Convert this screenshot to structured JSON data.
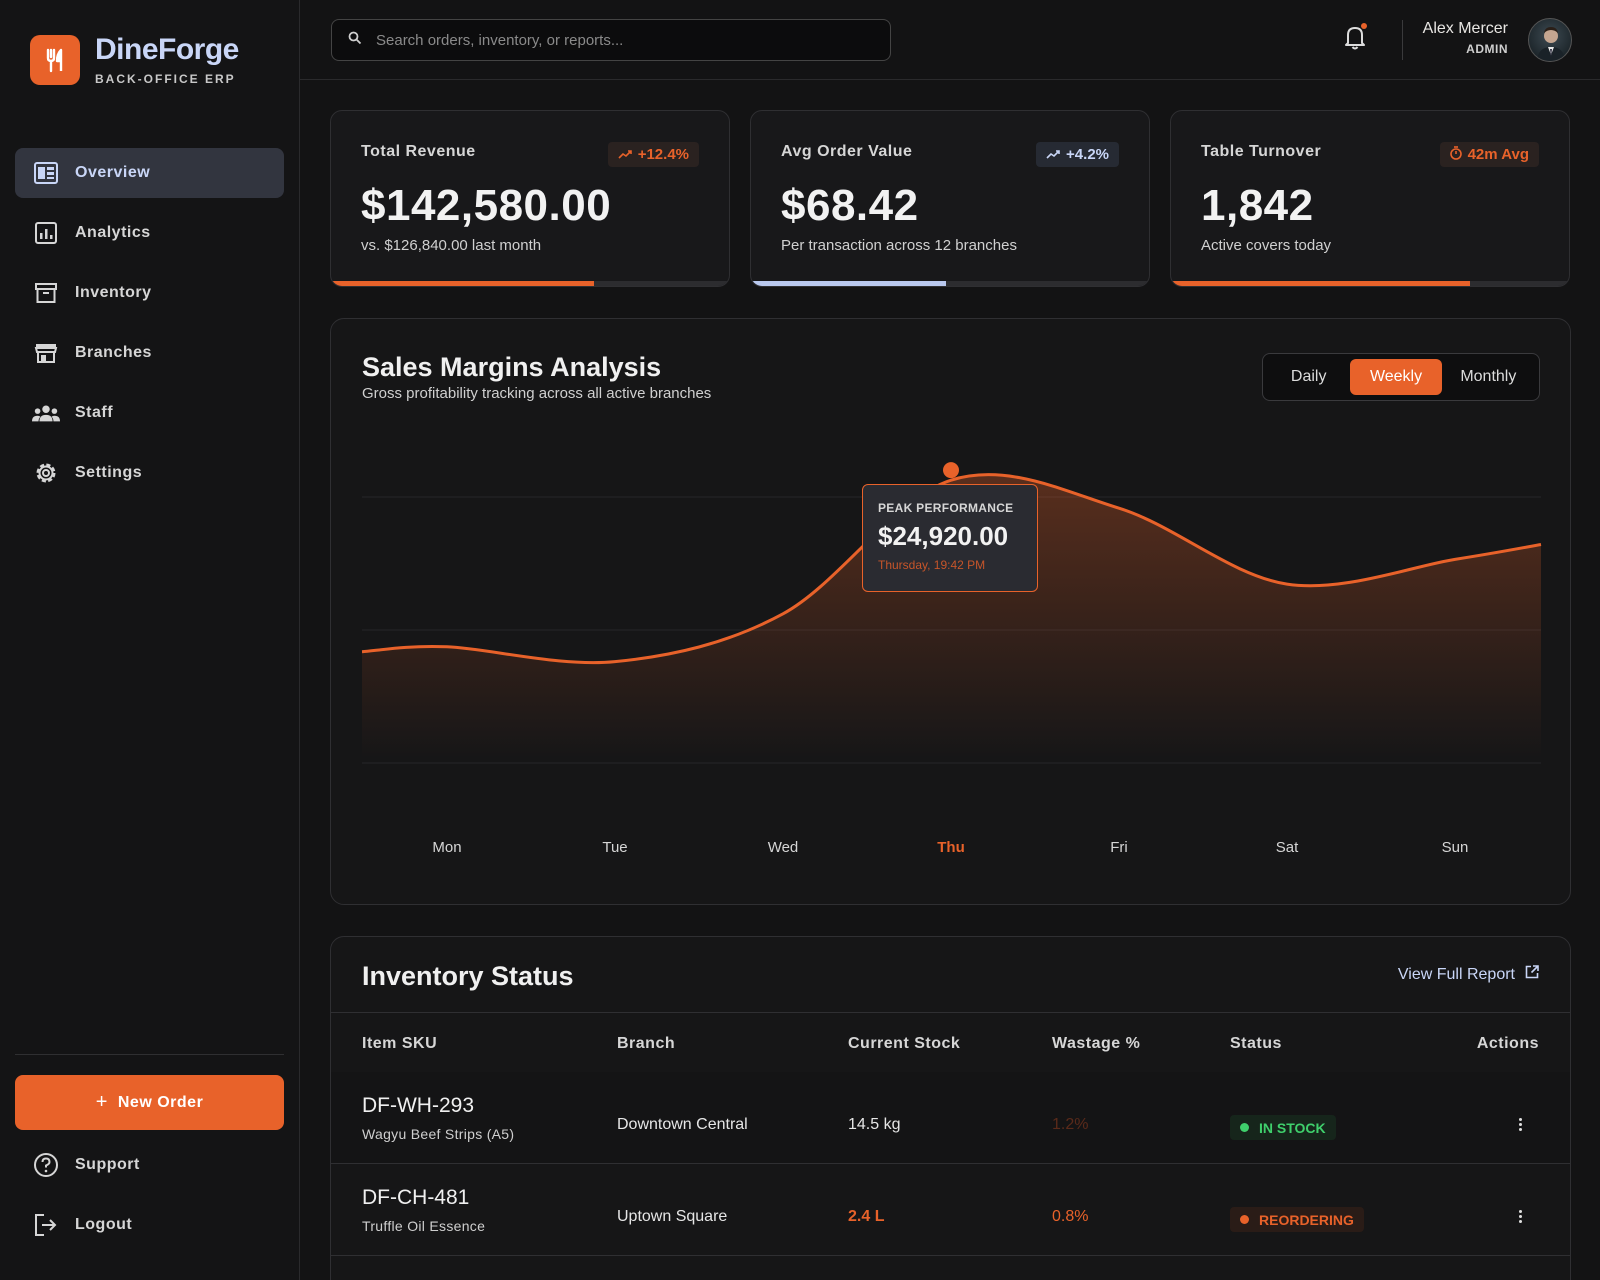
{
  "brand": {
    "name": "DineForge",
    "subtitle": "BACK-OFFICE ERP",
    "accent": "#e8622a"
  },
  "sidebar": {
    "items": [
      {
        "label": "Overview",
        "icon": "dashboard-icon",
        "active": true
      },
      {
        "label": "Analytics",
        "icon": "analytics-icon",
        "active": false
      },
      {
        "label": "Inventory",
        "icon": "archive-box-icon",
        "active": false
      },
      {
        "label": "Branches",
        "icon": "storefront-icon",
        "active": false
      },
      {
        "label": "Staff",
        "icon": "people-group-icon",
        "active": false
      },
      {
        "label": "Settings",
        "icon": "gear-icon",
        "active": false
      }
    ],
    "new_order_label": "New Order",
    "bottom_items": [
      {
        "label": "Support",
        "icon": "help-circle-icon"
      },
      {
        "label": "Logout",
        "icon": "logout-icon"
      }
    ]
  },
  "header": {
    "search_placeholder": "Search orders, inventory, or reports...",
    "user_name": "Alex Mercer",
    "user_role": "ADMIN",
    "has_notification": true
  },
  "stats": [
    {
      "title": "Total Revenue",
      "badge": "+12.4%",
      "badge_icon": "trend-up-icon",
      "value": "$142,580.00",
      "sub": "vs. $126,840.00 last month",
      "progress": 0.66,
      "color": "orange"
    },
    {
      "title": "Avg Order Value",
      "badge": "+4.2%",
      "badge_icon": "trend-up-icon",
      "value": "$68.42",
      "sub": "Per transaction across 12 branches",
      "progress": 0.49,
      "color": "blue"
    },
    {
      "title": "Table Turnover",
      "badge": "42m Avg",
      "badge_icon": "timer-icon",
      "value": "1,842",
      "sub": "Active covers today",
      "progress": 0.75,
      "color": "orange"
    }
  ],
  "sales": {
    "title": "Sales Margins Analysis",
    "subtitle": "Gross profitability tracking across all active branches",
    "segments": [
      {
        "label": "Daily",
        "active": false
      },
      {
        "label": "Weekly",
        "active": true
      },
      {
        "label": "Monthly",
        "active": false
      }
    ],
    "tooltip": {
      "label": "PEAK PERFORMANCE",
      "value": "$24,920.00",
      "time": "Thursday, 19:42 PM"
    },
    "highlight_day": "Thu"
  },
  "chart_data": {
    "type": "area",
    "categories": [
      "Mon",
      "Tue",
      "Wed",
      "Thu",
      "Fri",
      "Sat",
      "Sun"
    ],
    "values": [
      14800,
      13900,
      16800,
      24900,
      23200,
      18600,
      20100
    ],
    "ylim": [
      8000,
      28000
    ],
    "grid": true
  },
  "inventory": {
    "title": "Inventory Status",
    "link_label": "View Full Report",
    "columns": [
      "Item SKU",
      "Branch",
      "Current Stock",
      "Wastage %",
      "Status",
      "Actions"
    ],
    "rows": [
      {
        "sku": "DF-WH-293",
        "name": "Wagyu Beef Strips (A5)",
        "branch": "Downtown Central",
        "stock": "14.5 kg",
        "wastage": "1.2%",
        "status": "IN STOCK",
        "status_type": "ok"
      },
      {
        "sku": "DF-CH-481",
        "name": "Truffle Oil Essence",
        "branch": "Uptown Square",
        "stock": "2.4 L",
        "wastage": "0.8%",
        "status": "REORDERING",
        "status_type": "re"
      }
    ]
  }
}
